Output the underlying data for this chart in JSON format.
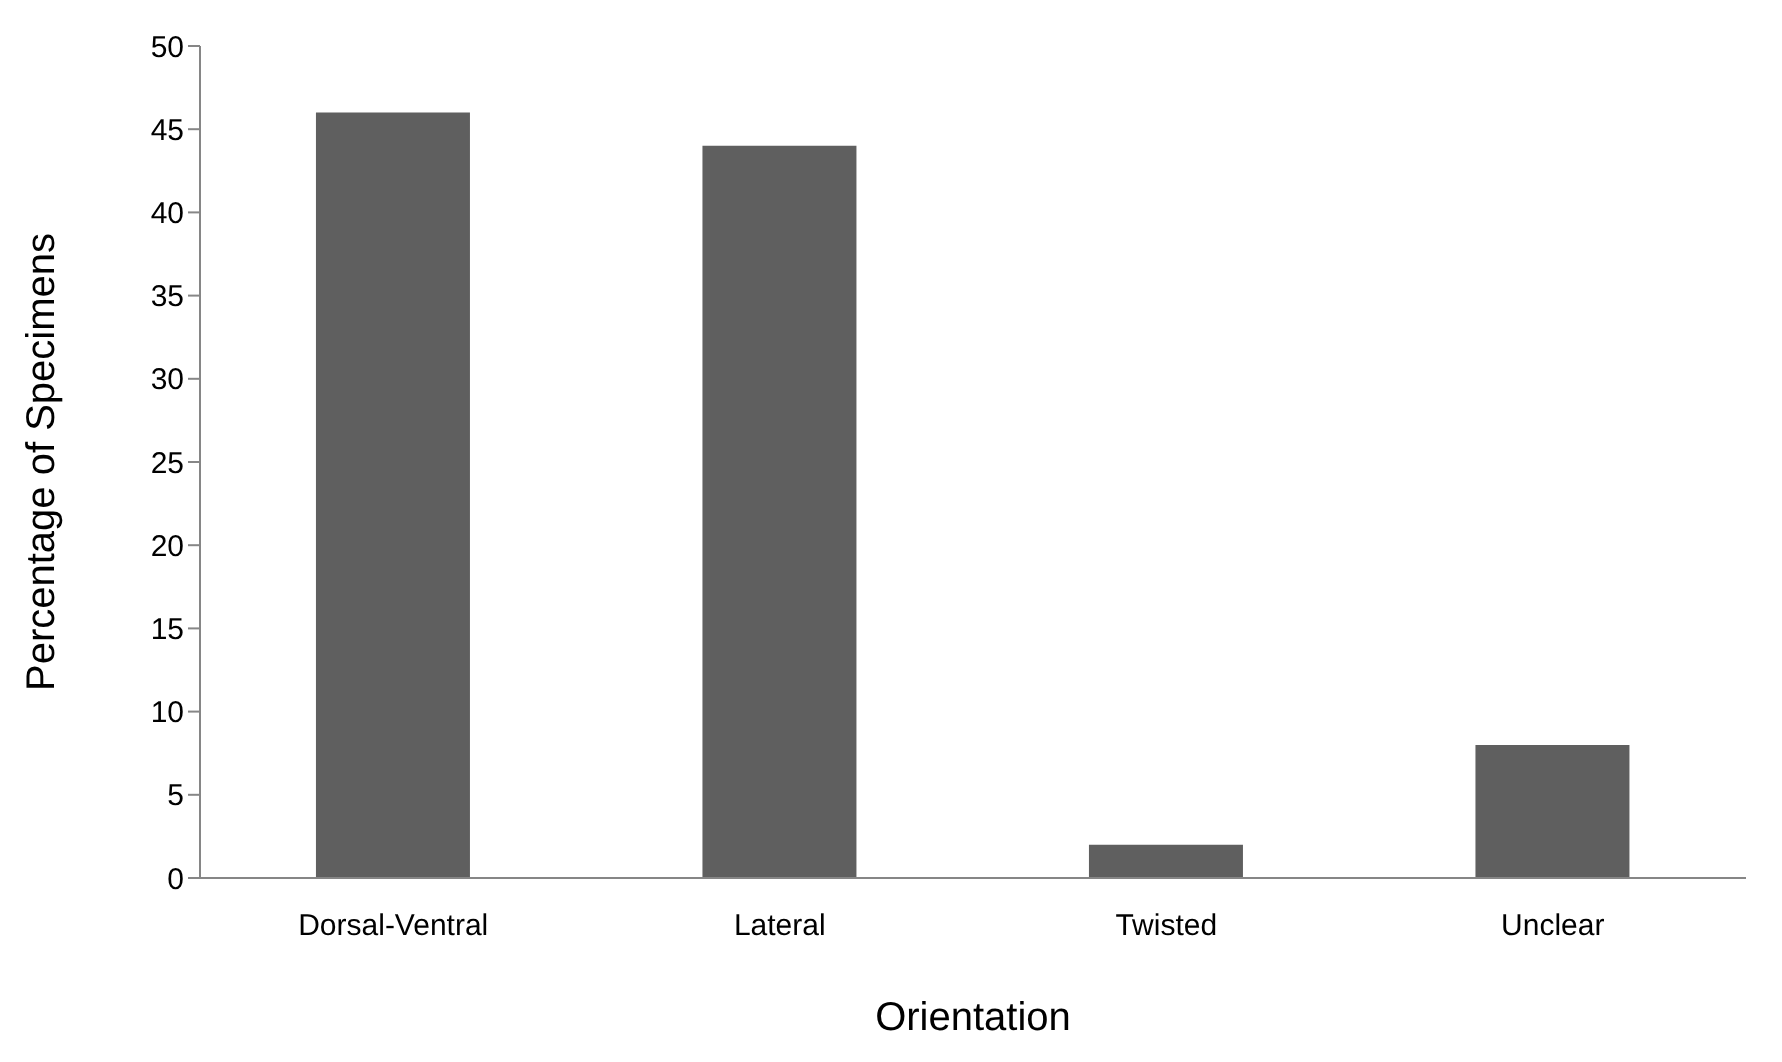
{
  "chart_data": {
    "type": "bar",
    "xlabel": "Orientation",
    "ylabel": "Percentage of Specimens",
    "categories": [
      "Dorsal-Ventral",
      "Lateral",
      "Twisted",
      "Unclear"
    ],
    "values": [
      46,
      44,
      2,
      8
    ],
    "color": "#5f5f5f",
    "ylim": [
      0,
      50
    ],
    "yticks": [
      0,
      5,
      10,
      15,
      20,
      25,
      30,
      35,
      40,
      45,
      50
    ],
    "grid": false
  }
}
